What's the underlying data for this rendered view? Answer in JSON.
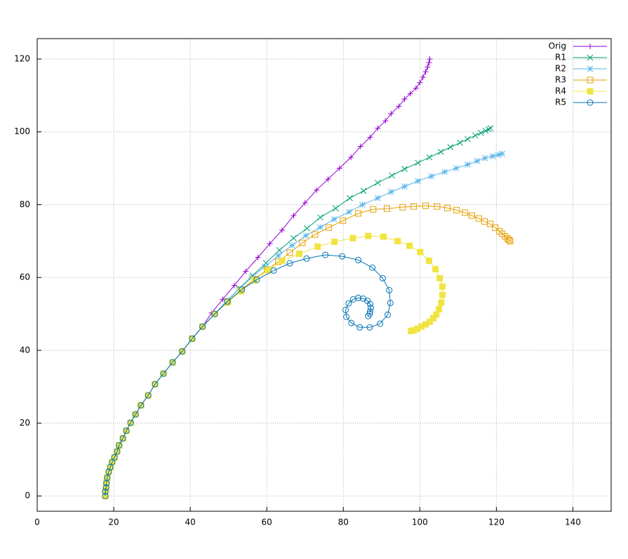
{
  "chart_data": {
    "type": "line",
    "xlim": [
      0,
      150
    ],
    "ylim": [
      -4.2,
      125.6
    ],
    "xticks": [
      0,
      20,
      40,
      60,
      80,
      100,
      120,
      140
    ],
    "yticks": [
      0,
      20,
      40,
      60,
      80,
      100,
      120
    ],
    "grid": true,
    "legend": "top-right",
    "series": [
      {
        "name": "Orig",
        "color": "#9400d3",
        "point": "plus",
        "x": [
          17.8,
          17.8,
          18,
          18.1,
          18.3,
          18.7,
          19.1,
          19.6,
          20.2,
          20.9,
          21.4,
          22.4,
          23.3,
          24.4,
          25.7,
          27.1,
          29,
          30.8,
          33,
          35.4,
          37.9,
          40.5,
          43.2,
          45.6,
          48.5,
          51.5,
          54.5,
          57.7,
          60.8,
          64,
          67,
          70,
          73,
          76,
          79,
          82,
          84.5,
          87,
          89,
          91,
          92.5,
          94.5,
          96,
          97.5,
          99,
          100,
          100.8,
          101.5,
          102,
          102.4,
          102.6
        ],
        "values": [
          0,
          1.2,
          2.3,
          3.5,
          5,
          6.6,
          7.9,
          9.3,
          10.6,
          12.2,
          13.9,
          15.8,
          17.9,
          20.1,
          22.4,
          24.9,
          27.6,
          30.7,
          33.6,
          36.7,
          39.7,
          43.2,
          46.5,
          50.3,
          54,
          57.8,
          61.7,
          65.5,
          69.3,
          73,
          77,
          80.5,
          84,
          87,
          90,
          93,
          96,
          98.5,
          101,
          103,
          105,
          107,
          109,
          110.5,
          112,
          113.5,
          115,
          116.5,
          117.8,
          119,
          120
        ]
      },
      {
        "name": "R1",
        "color": "#009e73",
        "point": "cross",
        "x": [
          17.8,
          17.8,
          18,
          18.1,
          18.3,
          18.7,
          19.1,
          19.6,
          20.2,
          20.9,
          21.4,
          22.4,
          23.3,
          24.4,
          25.7,
          27.1,
          29,
          30.8,
          33,
          35.4,
          37.9,
          40.5,
          43.2,
          46.4,
          49.5,
          52.8,
          56.3,
          59.8,
          63.3,
          67,
          70.5,
          74,
          78,
          81.7,
          85.3,
          89,
          92.7,
          96,
          99.5,
          102.5,
          105.5,
          108,
          110.5,
          112.5,
          114.5,
          116,
          117.2,
          118,
          118.5
        ],
        "values": [
          0,
          1.2,
          2.3,
          3.5,
          5,
          6.6,
          7.9,
          9.3,
          10.6,
          12.2,
          13.9,
          15.8,
          17.9,
          20.1,
          22.4,
          24.9,
          27.6,
          30.7,
          33.6,
          36.7,
          39.7,
          43.2,
          46.5,
          50,
          53.5,
          57,
          60.5,
          64,
          67.5,
          70.8,
          73.5,
          76.5,
          79,
          81.8,
          83.8,
          86,
          88,
          89.8,
          91.5,
          93,
          94.5,
          95.8,
          97,
          98,
          99,
          99.7,
          100.3,
          100.7,
          101
        ]
      },
      {
        "name": "R2",
        "color": "#56b4e9",
        "point": "star",
        "x": [
          17.8,
          17.8,
          18,
          18.1,
          18.3,
          18.7,
          19.1,
          19.6,
          20.2,
          20.9,
          21.4,
          22.4,
          23.3,
          24.4,
          25.7,
          27.1,
          29,
          30.8,
          33,
          35.4,
          37.9,
          40.5,
          43.2,
          46.4,
          49.5,
          52.7,
          56,
          59.5,
          63,
          66.6,
          70.2,
          74,
          77.6,
          81.5,
          85,
          89,
          92.5,
          96,
          99.5,
          103,
          106.5,
          109.5,
          112.5,
          115,
          117,
          119,
          120.5,
          121.5
        ],
        "values": [
          0,
          1.2,
          2.3,
          3.5,
          5,
          6.6,
          7.9,
          9.3,
          10.6,
          12.2,
          13.9,
          15.8,
          17.9,
          20.1,
          22.4,
          24.9,
          27.6,
          30.7,
          33.6,
          36.7,
          39.7,
          43.2,
          46.5,
          50,
          53.5,
          56.8,
          60,
          63,
          66,
          68.8,
          71.5,
          73.8,
          76,
          78,
          80,
          81.8,
          83.5,
          85,
          86.5,
          87.8,
          89,
          90,
          91,
          92,
          92.8,
          93.3,
          93.7,
          94
        ]
      },
      {
        "name": "R3",
        "color": "#e69f00",
        "point": "square",
        "x": [
          17.8,
          17.8,
          18,
          18.1,
          18.3,
          18.7,
          19.1,
          19.6,
          20.2,
          20.9,
          21.4,
          22.4,
          23.3,
          24.4,
          25.7,
          27.1,
          29,
          30.8,
          33,
          35.4,
          37.9,
          40.5,
          43.2,
          46.4,
          49.8,
          53.3,
          56.7,
          60.1,
          63,
          66,
          69.3,
          72.6,
          76.2,
          79.9,
          83.9,
          87.8,
          91.4,
          95.5,
          98.4,
          101.5,
          104.5,
          107.2,
          109.6,
          111.8,
          113.6,
          115.4,
          116.9,
          118.4,
          119.7,
          120.8,
          121.5,
          122.3,
          122.9,
          123.3,
          123.6
        ],
        "values": [
          0,
          1.2,
          2.3,
          3.5,
          5,
          6.6,
          7.9,
          9.3,
          10.6,
          12.2,
          13.9,
          15.8,
          17.9,
          20.1,
          22.4,
          24.9,
          27.6,
          30.7,
          33.6,
          36.7,
          39.7,
          43.2,
          46.5,
          50,
          53.4,
          56.6,
          59.5,
          62.1,
          64.3,
          66.8,
          69.5,
          71.8,
          73.7,
          75.6,
          77.6,
          78.7,
          78.9,
          79.3,
          79.5,
          79.7,
          79.5,
          79.1,
          78.5,
          77.8,
          77,
          76.2,
          75.4,
          74.7,
          73.7,
          72.7,
          72,
          71.3,
          70.7,
          70.3,
          70
        ]
      },
      {
        "name": "R4",
        "color": "#f0e442",
        "point": "filled-square",
        "x": [
          17.8,
          17.8,
          18,
          18.1,
          18.3,
          18.7,
          19.1,
          19.6,
          20.2,
          20.9,
          21.4,
          22.4,
          23.3,
          24.4,
          25.7,
          27.1,
          29,
          30.8,
          33,
          35.4,
          37.9,
          40.5,
          43.2,
          46.4,
          49.7,
          53.2,
          56.7,
          60.3,
          64,
          68.5,
          73.3,
          77.7,
          82.5,
          86.5,
          90.5,
          94.2,
          97.3,
          100.1,
          102.4,
          104.1,
          105.2,
          105.9,
          105.9,
          105.6,
          105,
          104.3,
          103.5,
          102.6,
          101.5,
          100.4,
          99.3,
          98.4,
          97.7
        ],
        "values": [
          0,
          1.2,
          2.3,
          3.5,
          5,
          6.6,
          7.9,
          9.3,
          10.6,
          12.2,
          13.9,
          15.8,
          17.9,
          20.1,
          22.4,
          24.9,
          27.6,
          30.7,
          33.6,
          36.7,
          39.7,
          43.2,
          46.5,
          50,
          53.1,
          56.2,
          59.2,
          62,
          64.6,
          66.5,
          68.5,
          69.8,
          70.8,
          71.4,
          71.2,
          70,
          68.7,
          67,
          64.6,
          62.3,
          59.8,
          57.5,
          55.2,
          53.1,
          51.3,
          49.8,
          48.8,
          47.8,
          47.1,
          46.5,
          45.9,
          45.5,
          45.3
        ]
      },
      {
        "name": "R5",
        "color": "#0072b2",
        "point": "circle",
        "x": [
          17.8,
          17.8,
          18,
          18.1,
          18.3,
          18.7,
          19.1,
          19.6,
          20.2,
          20.9,
          21.4,
          22.4,
          23.3,
          24.4,
          25.7,
          27.1,
          29,
          30.8,
          33,
          35.4,
          37.9,
          40.5,
          43.2,
          46.4,
          49.7,
          53.5,
          57.4,
          61.8,
          66,
          70.4,
          75.3,
          79.7,
          83.9,
          87.6,
          90.3,
          92,
          92.3,
          91.6,
          89.6,
          86.9,
          84.3,
          82.1,
          80.8,
          80.6,
          81.4,
          82.6,
          83.9,
          85.2,
          86.3,
          87,
          87.2,
          87,
          86.9,
          86.5
        ],
        "values": [
          0,
          1.2,
          2.3,
          3.5,
          5,
          6.6,
          7.9,
          9.3,
          10.6,
          12.2,
          13.9,
          15.8,
          17.9,
          20.1,
          22.4,
          24.9,
          27.6,
          30.7,
          33.6,
          36.7,
          39.7,
          43.2,
          46.5,
          50,
          53.4,
          56.7,
          59.4,
          61.9,
          63.9,
          65.2,
          66.2,
          65.8,
          64.8,
          62.7,
          59.8,
          56.5,
          53,
          49.8,
          47.3,
          46.3,
          46.3,
          47.5,
          49.2,
          51.1,
          52.9,
          54,
          54.4,
          54.2,
          53.6,
          52.7,
          51.7,
          50.7,
          50,
          49.4
        ]
      }
    ]
  }
}
